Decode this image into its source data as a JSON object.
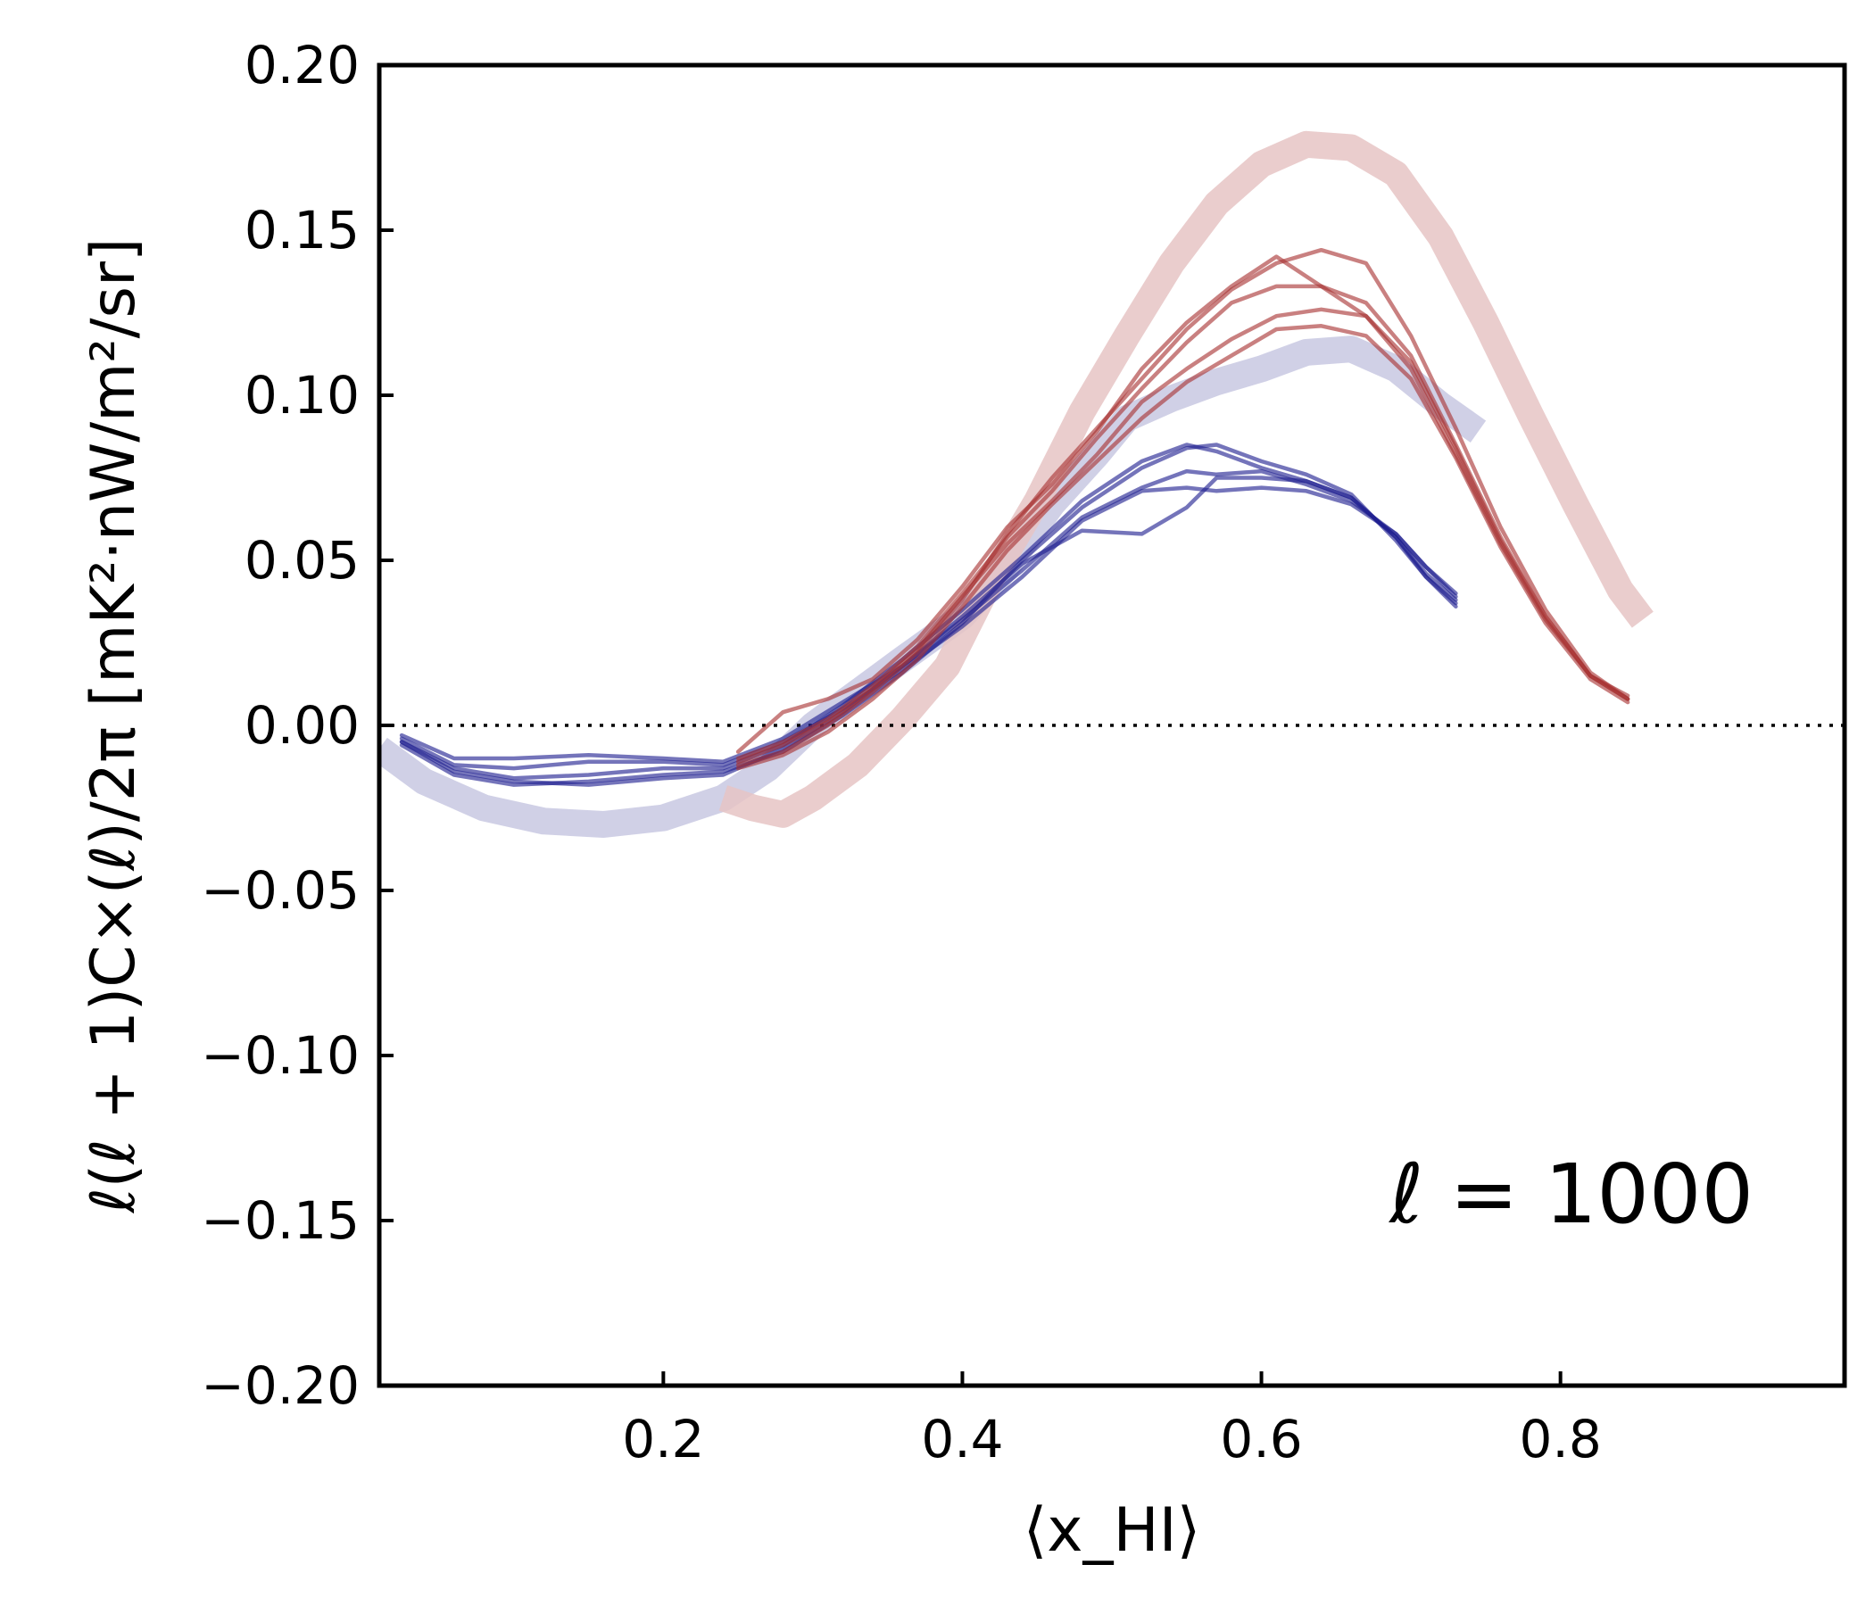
{
  "chart_data": {
    "type": "line",
    "xlabel": "⟨x_HI⟩",
    "ylabel": "ℓ(ℓ + 1)C×(ℓ)/2π [mK²·nW/m²/sr]",
    "annotation": "ℓ = 1000",
    "xlim": [
      0.01,
      0.99
    ],
    "ylim": [
      -0.2,
      0.2
    ],
    "xticks": [
      0.2,
      0.4,
      0.6,
      0.8
    ],
    "xtick_labels": [
      "0.2",
      "0.4",
      "0.6",
      "0.8"
    ],
    "yticks": [
      -0.2,
      -0.15,
      -0.1,
      -0.05,
      0.0,
      0.05,
      0.1,
      0.15,
      0.2
    ],
    "ytick_labels": [
      "−0.20",
      "−0.15",
      "−0.10",
      "−0.05",
      "0.00",
      "0.05",
      "0.10",
      "0.15",
      "0.20"
    ],
    "zero_line": 0.0,
    "colors": {
      "blue_line": "#1f1f8f",
      "blue_band": "#c8c8e2",
      "red_line": "#a83232",
      "red_band": "#e6c4c4"
    },
    "series": [
      {
        "name": "blue band",
        "group": "blue",
        "style": "band",
        "x": [
          0.01,
          0.04,
          0.08,
          0.12,
          0.16,
          0.2,
          0.24,
          0.27,
          0.3,
          0.33,
          0.36,
          0.4,
          0.43,
          0.46,
          0.49,
          0.51,
          0.54,
          0.57,
          0.6,
          0.63,
          0.66,
          0.69,
          0.72,
          0.745
        ],
        "y": [
          -0.007,
          -0.017,
          -0.025,
          -0.029,
          -0.03,
          -0.028,
          -0.022,
          -0.013,
          0.0,
          0.01,
          0.02,
          0.033,
          0.048,
          0.067,
          0.082,
          0.093,
          0.099,
          0.104,
          0.108,
          0.113,
          0.114,
          0.108,
          0.097,
          0.089
        ]
      },
      {
        "name": "red band",
        "group": "red",
        "style": "band",
        "x": [
          0.24,
          0.26,
          0.28,
          0.3,
          0.33,
          0.36,
          0.39,
          0.42,
          0.45,
          0.48,
          0.51,
          0.54,
          0.57,
          0.6,
          0.63,
          0.66,
          0.69,
          0.72,
          0.75,
          0.78,
          0.81,
          0.84,
          0.855
        ],
        "y": [
          -0.022,
          -0.025,
          -0.027,
          -0.022,
          -0.012,
          0.002,
          0.018,
          0.045,
          0.068,
          0.095,
          0.118,
          0.14,
          0.158,
          0.17,
          0.176,
          0.175,
          0.167,
          0.148,
          0.122,
          0.094,
          0.067,
          0.041,
          0.032
        ]
      },
      {
        "name": "blue 1",
        "group": "blue",
        "style": "thin",
        "x": [
          0.025,
          0.06,
          0.1,
          0.15,
          0.2,
          0.24,
          0.28,
          0.32,
          0.36,
          0.4,
          0.44,
          0.48,
          0.52,
          0.55,
          0.57,
          0.6,
          0.63,
          0.66,
          0.69,
          0.71,
          0.73
        ],
        "y": [
          -0.003,
          -0.01,
          -0.01,
          -0.009,
          -0.01,
          -0.011,
          -0.004,
          0.007,
          0.018,
          0.032,
          0.047,
          0.063,
          0.072,
          0.077,
          0.076,
          0.077,
          0.073,
          0.068,
          0.058,
          0.048,
          0.04
        ]
      },
      {
        "name": "blue 2",
        "group": "blue",
        "style": "thin",
        "x": [
          0.025,
          0.06,
          0.1,
          0.15,
          0.2,
          0.24,
          0.28,
          0.32,
          0.36,
          0.4,
          0.44,
          0.48,
          0.52,
          0.55,
          0.57,
          0.6,
          0.63,
          0.66,
          0.69,
          0.71,
          0.73
        ],
        "y": [
          -0.005,
          -0.013,
          -0.016,
          -0.015,
          -0.013,
          -0.013,
          -0.006,
          0.006,
          0.02,
          0.035,
          0.051,
          0.068,
          0.08,
          0.085,
          0.083,
          0.078,
          0.074,
          0.069,
          0.057,
          0.046,
          0.038
        ]
      },
      {
        "name": "blue 3",
        "group": "blue",
        "style": "thin",
        "x": [
          0.025,
          0.06,
          0.1,
          0.15,
          0.2,
          0.24,
          0.28,
          0.32,
          0.36,
          0.4,
          0.44,
          0.48,
          0.52,
          0.55,
          0.57,
          0.6,
          0.63,
          0.66,
          0.69,
          0.71,
          0.73
        ],
        "y": [
          -0.006,
          -0.015,
          -0.018,
          -0.017,
          -0.015,
          -0.014,
          -0.008,
          0.003,
          0.016,
          0.031,
          0.05,
          0.066,
          0.078,
          0.084,
          0.085,
          0.08,
          0.076,
          0.07,
          0.056,
          0.045,
          0.037
        ]
      },
      {
        "name": "blue 4",
        "group": "blue",
        "style": "thin",
        "x": [
          0.025,
          0.06,
          0.1,
          0.15,
          0.2,
          0.24,
          0.28,
          0.32,
          0.36,
          0.4,
          0.44,
          0.48,
          0.52,
          0.55,
          0.57,
          0.6,
          0.63,
          0.66,
          0.69,
          0.71,
          0.73
        ],
        "y": [
          -0.004,
          -0.012,
          -0.013,
          -0.011,
          -0.011,
          -0.012,
          -0.005,
          0.005,
          0.017,
          0.03,
          0.045,
          0.062,
          0.071,
          0.072,
          0.071,
          0.072,
          0.071,
          0.067,
          0.058,
          0.048,
          0.039
        ]
      },
      {
        "name": "blue 5",
        "group": "blue",
        "style": "thin",
        "x": [
          0.025,
          0.06,
          0.1,
          0.15,
          0.2,
          0.24,
          0.28,
          0.32,
          0.36,
          0.4,
          0.44,
          0.48,
          0.52,
          0.55,
          0.57,
          0.6,
          0.63,
          0.66,
          0.69,
          0.71,
          0.73
        ],
        "y": [
          -0.005,
          -0.014,
          -0.017,
          -0.018,
          -0.016,
          -0.015,
          -0.007,
          0.004,
          0.018,
          0.033,
          0.049,
          0.059,
          0.058,
          0.066,
          0.075,
          0.075,
          0.074,
          0.069,
          0.057,
          0.045,
          0.036
        ]
      },
      {
        "name": "red 1",
        "group": "red",
        "style": "thin",
        "x": [
          0.25,
          0.28,
          0.31,
          0.34,
          0.37,
          0.4,
          0.43,
          0.46,
          0.49,
          0.52,
          0.55,
          0.58,
          0.61,
          0.64,
          0.67,
          0.7,
          0.73,
          0.76,
          0.79,
          0.82,
          0.845
        ],
        "y": [
          -0.012,
          -0.008,
          0.0,
          0.01,
          0.022,
          0.038,
          0.058,
          0.075,
          0.09,
          0.105,
          0.12,
          0.132,
          0.14,
          0.144,
          0.14,
          0.118,
          0.09,
          0.06,
          0.035,
          0.016,
          0.008
        ]
      },
      {
        "name": "red 2",
        "group": "red",
        "style": "thin",
        "x": [
          0.25,
          0.28,
          0.31,
          0.34,
          0.37,
          0.4,
          0.43,
          0.46,
          0.49,
          0.52,
          0.55,
          0.58,
          0.61,
          0.64,
          0.67,
          0.7,
          0.73,
          0.76,
          0.79,
          0.82,
          0.845
        ],
        "y": [
          -0.008,
          0.004,
          0.008,
          0.014,
          0.026,
          0.042,
          0.06,
          0.073,
          0.089,
          0.108,
          0.122,
          0.133,
          0.142,
          0.133,
          0.124,
          0.108,
          0.082,
          0.055,
          0.032,
          0.015,
          0.009
        ]
      },
      {
        "name": "red 3",
        "group": "red",
        "style": "thin",
        "x": [
          0.25,
          0.28,
          0.31,
          0.34,
          0.37,
          0.4,
          0.43,
          0.46,
          0.49,
          0.52,
          0.55,
          0.58,
          0.61,
          0.64,
          0.67,
          0.7,
          0.73,
          0.76,
          0.79,
          0.82,
          0.845
        ],
        "y": [
          -0.01,
          -0.005,
          0.002,
          0.012,
          0.024,
          0.04,
          0.057,
          0.071,
          0.087,
          0.102,
          0.116,
          0.128,
          0.133,
          0.133,
          0.128,
          0.112,
          0.085,
          0.057,
          0.033,
          0.015,
          0.008
        ]
      },
      {
        "name": "red 4",
        "group": "red",
        "style": "thin",
        "x": [
          0.25,
          0.28,
          0.31,
          0.34,
          0.37,
          0.4,
          0.43,
          0.46,
          0.49,
          0.52,
          0.55,
          0.58,
          0.61,
          0.64,
          0.67,
          0.7,
          0.73,
          0.76,
          0.79,
          0.82,
          0.845
        ],
        "y": [
          -0.011,
          -0.006,
          0.001,
          0.011,
          0.023,
          0.039,
          0.055,
          0.068,
          0.082,
          0.098,
          0.108,
          0.117,
          0.124,
          0.126,
          0.124,
          0.11,
          0.084,
          0.056,
          0.033,
          0.015,
          0.008
        ]
      },
      {
        "name": "red 5",
        "group": "red",
        "style": "thin",
        "x": [
          0.25,
          0.28,
          0.31,
          0.34,
          0.37,
          0.4,
          0.43,
          0.46,
          0.49,
          0.52,
          0.55,
          0.58,
          0.61,
          0.64,
          0.67,
          0.7,
          0.73,
          0.76,
          0.79,
          0.82,
          0.845
        ],
        "y": [
          -0.013,
          -0.009,
          -0.002,
          0.008,
          0.02,
          0.036,
          0.053,
          0.067,
          0.08,
          0.093,
          0.104,
          0.112,
          0.12,
          0.121,
          0.118,
          0.105,
          0.081,
          0.054,
          0.031,
          0.014,
          0.007
        ]
      }
    ]
  }
}
